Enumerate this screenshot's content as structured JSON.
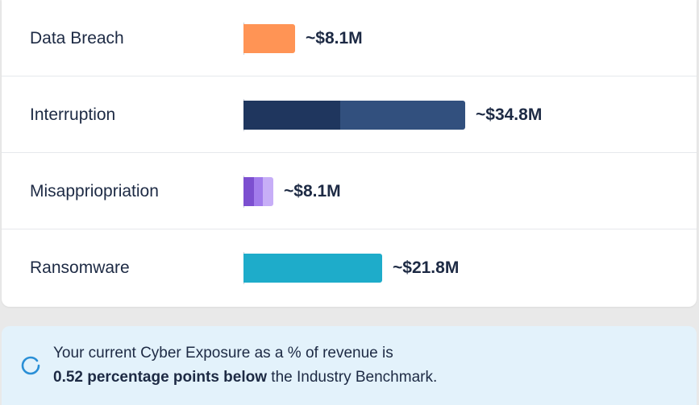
{
  "rows": [
    {
      "label": "Data Breach",
      "value_label": "~$8.1M",
      "value": 8.1,
      "segments": [
        "#ff9455"
      ]
    },
    {
      "label": "Interruption",
      "value_label": "~$34.8M",
      "value": 34.8,
      "segments": [
        "#1f365e",
        "#32507e"
      ]
    },
    {
      "label": "Misappriopriation",
      "value_label": "~$8.1M",
      "value": 8.1,
      "segments": [
        "#7c4fd0",
        "#a27cec",
        "#c7aef7"
      ]
    },
    {
      "label": "Ransomware",
      "value_label": "~$21.8M",
      "value": 21.8,
      "segments": [
        "#1eacca"
      ]
    }
  ],
  "banner": {
    "line1": "Your current Cyber Exposure as a % of revenue is",
    "emphasis": "0.52 percentage points below",
    "line2_rest": " the Industry Benchmark.",
    "icon": "loading-ring-icon",
    "icon_color": "#2a8fd6"
  }
}
